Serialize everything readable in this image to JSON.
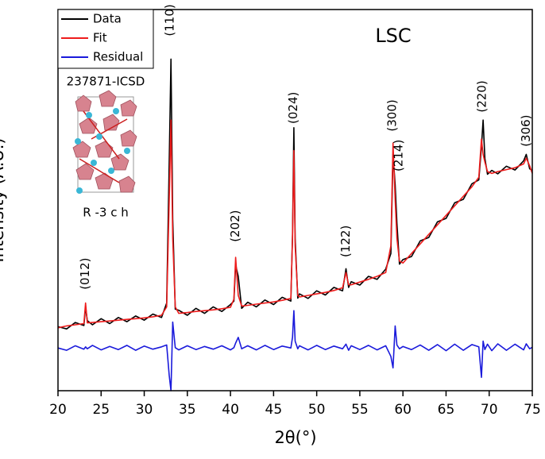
{
  "chart_data": {
    "type": "line",
    "title": "LSC",
    "xlabel": "2θ(°)",
    "ylabel": "Intensity (A.U.)",
    "inset_labels": [
      "237871-ICSD",
      "R -3 c h"
    ],
    "xlim": [
      20,
      75
    ],
    "xticks": [
      20,
      25,
      30,
      35,
      40,
      45,
      50,
      55,
      60,
      65,
      70,
      75
    ],
    "ylim": [
      0,
      100
    ],
    "legend": "upper left",
    "x": [
      20,
      21,
      22,
      23,
      23.2,
      23.4,
      24,
      25,
      26,
      27,
      28,
      29,
      30,
      31,
      32,
      32.6,
      32.9,
      33.1,
      33.3,
      33.6,
      34,
      35,
      36,
      37,
      38,
      39,
      40,
      40.4,
      40.6,
      40.9,
      41.3,
      42,
      43,
      44,
      45,
      46,
      47,
      47.2,
      47.35,
      47.5,
      47.8,
      48,
      49,
      50,
      51,
      52,
      53,
      53.4,
      53.7,
      54,
      55,
      56,
      57,
      58,
      58.6,
      58.85,
      59.1,
      59.3,
      59.6,
      60,
      61,
      62,
      63,
      64,
      65,
      66,
      67,
      68,
      68.8,
      69.1,
      69.3,
      69.5,
      69.8,
      70.3,
      71,
      72,
      73,
      74,
      74.3,
      74.7,
      75
    ],
    "series": [
      {
        "name": "Data",
        "color": "#000000",
        "values": [
          16.8,
          16.2,
          17.9,
          17.1,
          22,
          18.4,
          17.3,
          18.9,
          17.6,
          19.2,
          18.1,
          19.6,
          18.5,
          20.1,
          19.2,
          23,
          60,
          87,
          45,
          21.4,
          21.1,
          19.8,
          21.6,
          20.3,
          22,
          20.8,
          22.6,
          23.5,
          33,
          30,
          21.6,
          23.2,
          22,
          23.8,
          22.6,
          24.5,
          23.5,
          41,
          69,
          40,
          24.3,
          25.4,
          24.2,
          26.2,
          25.1,
          27.1,
          26.2,
          32,
          27.1,
          28.6,
          27.7,
          30,
          29.2,
          31.9,
          36,
          62,
          54,
          44,
          33.2,
          34.4,
          35.2,
          39.3,
          40.2,
          44.3,
          45.2,
          49.3,
          50.2,
          54.3,
          55.3,
          64,
          71,
          61,
          56.8,
          57.8,
          56.9,
          58.9,
          57.9,
          60.3,
          62,
          58.2,
          57.8
        ]
      },
      {
        "name": "Fit",
        "color": "#ee1c1c",
        "values": [
          16.5,
          17,
          17.3,
          17.6,
          23,
          17.8,
          17.9,
          18.1,
          18.3,
          18.5,
          18.7,
          18.9,
          19.1,
          19.4,
          19.8,
          22,
          50,
          71,
          40,
          22,
          20.3,
          20.5,
          20.8,
          21,
          21.2,
          21.5,
          21.9,
          24,
          35,
          25,
          22.2,
          22.4,
          22.7,
          23,
          23.3,
          23.7,
          24.2,
          40,
          63,
          38,
          25,
          24.6,
          25,
          25.4,
          25.8,
          26.3,
          27,
          31,
          27.8,
          27.8,
          28.5,
          29.2,
          30,
          31,
          38,
          65,
          50,
          40,
          34,
          33.5,
          36,
          38.5,
          41,
          43.5,
          46,
          48.5,
          51,
          53.5,
          56,
          66,
          62,
          60,
          57.5,
          57,
          57.5,
          58,
          58.5,
          59.5,
          61,
          59,
          57
        ]
      },
      {
        "name": "Residual",
        "color": "#1a1adb",
        "values": [
          11.2,
          10.6,
          11.8,
          10.9,
          11.5,
          11,
          11.9,
          10.7,
          11.6,
          10.8,
          11.9,
          10.6,
          11.7,
          10.9,
          11.5,
          12,
          4,
          0,
          18,
          11.3,
          10.7,
          11.8,
          10.8,
          11.6,
          10.9,
          11.8,
          10.7,
          11.3,
          12.5,
          14,
          11,
          11.8,
          10.7,
          11.9,
          10.8,
          11.7,
          11.2,
          14,
          21,
          13,
          11,
          11.8,
          10.7,
          11.9,
          10.8,
          11.7,
          11,
          12.2,
          10.6,
          11.8,
          10.8,
          11.9,
          10.7,
          11.8,
          9,
          6,
          17,
          12,
          11,
          11.6,
          10.8,
          12,
          10.6,
          12.1,
          10.5,
          12.2,
          10.6,
          12.1,
          11.5,
          3.5,
          13,
          10.8,
          12.2,
          10.5,
          12.3,
          10.6,
          12.2,
          10.7,
          12.3,
          11,
          11.4
        ]
      }
    ],
    "annotations": [
      {
        "text": "(012)",
        "x": 23.2,
        "y": 26.5
      },
      {
        "text": "(110)",
        "x": 33,
        "y": 93
      },
      {
        "text": "(202)",
        "x": 40.6,
        "y": 39
      },
      {
        "text": "(024)",
        "x": 47.3,
        "y": 70
      },
      {
        "text": "(122)",
        "x": 53.4,
        "y": 35
      },
      {
        "text": "(300)",
        "x": 58.8,
        "y": 68
      },
      {
        "text": "(214)",
        "x": 59.5,
        "y": 57.5
      },
      {
        "text": "(220)",
        "x": 69.2,
        "y": 73
      },
      {
        "text": "(306)",
        "x": 74.3,
        "y": 64
      }
    ]
  }
}
